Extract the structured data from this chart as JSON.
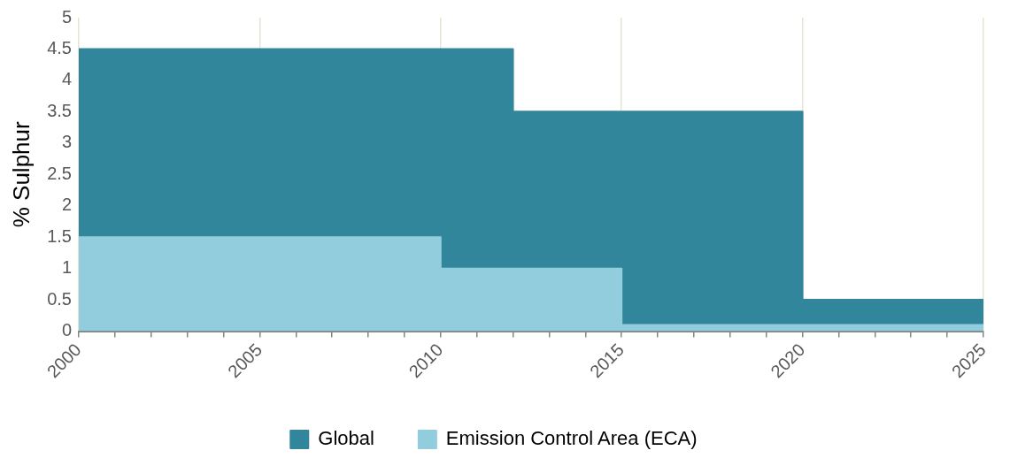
{
  "chart_data": {
    "type": "area",
    "ylabel": "% Sulphur",
    "series": [
      {
        "name": "Global",
        "color": "#31869b",
        "x": [
          2000,
          2012,
          2012,
          2020,
          2020,
          2025
        ],
        "values": [
          4.5,
          4.5,
          3.5,
          3.5,
          0.5,
          0.5
        ]
      },
      {
        "name": "Emission Control Area (ECA)",
        "color": "#92cddd",
        "x": [
          2000,
          2010,
          2010,
          2015,
          2015,
          2025
        ],
        "values": [
          1.5,
          1.5,
          1.0,
          1.0,
          0.1,
          0.1
        ]
      }
    ],
    "xlim": [
      2000,
      2025
    ],
    "xticks": [
      2000,
      {
        "value": 2001,
        "label": null
      },
      {
        "value": 2002,
        "label": null
      },
      {
        "value": 2003,
        "label": null
      },
      {
        "value": 2004,
        "label": null
      },
      2005,
      {
        "value": 2006,
        "label": null
      },
      {
        "value": 2007,
        "label": null
      },
      {
        "value": 2008,
        "label": null
      },
      {
        "value": 2009,
        "label": null
      },
      2010,
      {
        "value": 2011,
        "label": null
      },
      {
        "value": 2012,
        "label": null
      },
      {
        "value": 2013,
        "label": null
      },
      {
        "value": 2014,
        "label": null
      },
      2015,
      {
        "value": 2016,
        "label": null
      },
      {
        "value": 2017,
        "label": null
      },
      {
        "value": 2018,
        "label": null
      },
      {
        "value": 2019,
        "label": null
      },
      2020,
      {
        "value": 2021,
        "label": null
      },
      {
        "value": 2022,
        "label": null
      },
      {
        "value": 2023,
        "label": null
      },
      {
        "value": 2024,
        "label": null
      },
      2025
    ],
    "ylim": [
      0,
      5
    ],
    "yticks": [
      0,
      0.5,
      1,
      1.5,
      2,
      2.5,
      3,
      3.5,
      4,
      4.5,
      5
    ],
    "grid": "x",
    "legend": "bottom",
    "marker": "none"
  }
}
